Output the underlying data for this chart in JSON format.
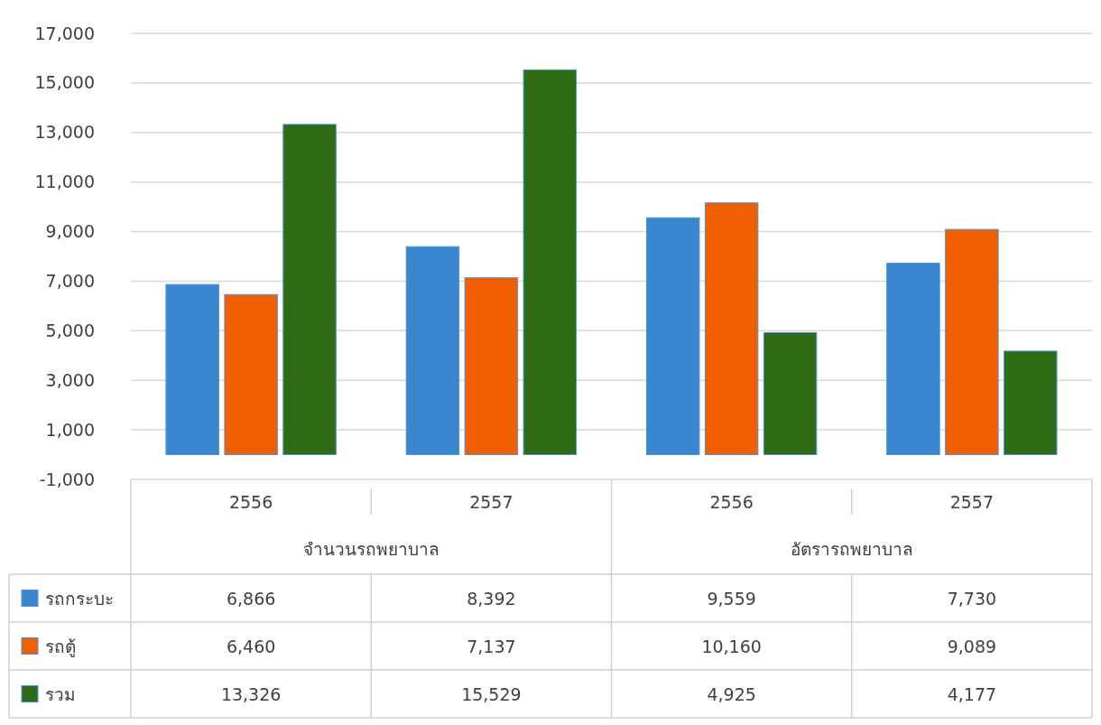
{
  "chart_data": {
    "type": "bar",
    "categories": [
      "2556",
      "2557",
      "2556",
      "2557"
    ],
    "annotations": [
      "จำนวนรถพยาบาล",
      "อัตรารถพยาบาล"
    ],
    "series": [
      {
        "name": "รถกระบะ",
        "color": "#3a87d0",
        "values": [
          6866,
          8392,
          9559,
          7730
        ],
        "value_labels": [
          "6,866",
          "8,392",
          "9,559",
          "7,730"
        ]
      },
      {
        "name": "รถตู้",
        "color": "#f06000",
        "values": [
          6460,
          7137,
          10160,
          9089
        ],
        "value_labels": [
          "6,460",
          "7,137",
          "10,160",
          "9,089"
        ]
      },
      {
        "name": "รวม",
        "color": "#2e6b12",
        "values": [
          13326,
          15529,
          4925,
          4177
        ],
        "value_labels": [
          "13,326",
          "15,529",
          "4,925",
          "4,177"
        ]
      }
    ],
    "ylim": [
      -1000,
      17000
    ],
    "yticks": [
      {
        "value": -1000,
        "label": "-1,000"
      },
      {
        "value": 1000,
        "label": "1,000"
      },
      {
        "value": 3000,
        "label": "3,000"
      },
      {
        "value": 5000,
        "label": "5,000"
      },
      {
        "value": 7000,
        "label": "7,000"
      },
      {
        "value": 9000,
        "label": "9,000"
      },
      {
        "value": 11000,
        "label": "11,000"
      },
      {
        "value": 13000,
        "label": "13,000"
      },
      {
        "value": 15000,
        "label": "15,000"
      },
      {
        "value": 17000,
        "label": "17,000"
      }
    ],
    "grid": "y",
    "legend": "bottom"
  }
}
